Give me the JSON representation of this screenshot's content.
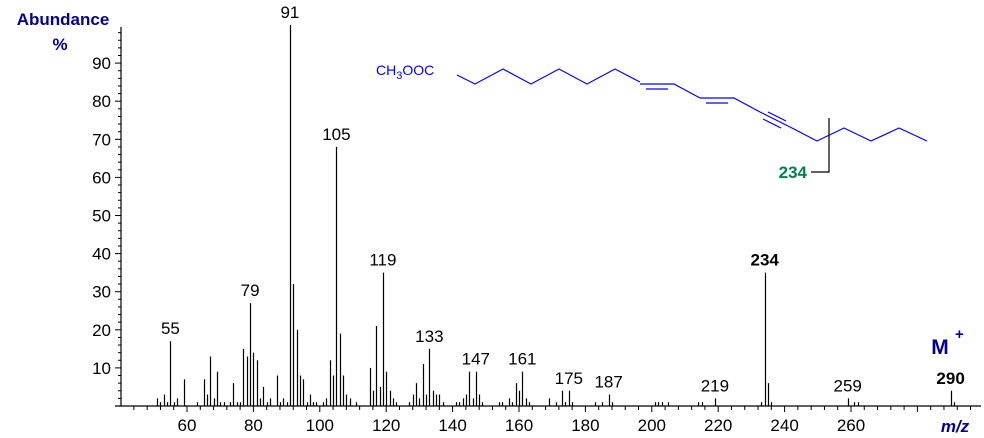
{
  "chart_data": {
    "type": "bar",
    "title": "",
    "xlabel": "m/z",
    "ylabel": "Abundance %",
    "xlim": [
      40,
      300
    ],
    "ylim": [
      0,
      100
    ],
    "grid": false,
    "x_ticks": [
      60,
      80,
      100,
      120,
      140,
      160,
      180,
      200,
      220,
      240,
      260
    ],
    "y_ticks": [
      10,
      20,
      30,
      40,
      50,
      60,
      70,
      80,
      90
    ],
    "peaks": [
      [
        51,
        2
      ],
      [
        52,
        1
      ],
      [
        53,
        3
      ],
      [
        54,
        1
      ],
      [
        55,
        17
      ],
      [
        56,
        1
      ],
      [
        57,
        2
      ],
      [
        59,
        7
      ],
      [
        63,
        1
      ],
      [
        65,
        7
      ],
      [
        66,
        3
      ],
      [
        67,
        13
      ],
      [
        68,
        2
      ],
      [
        69,
        9
      ],
      [
        70,
        1
      ],
      [
        71,
        1
      ],
      [
        73,
        1
      ],
      [
        74,
        6
      ],
      [
        75,
        1
      ],
      [
        76,
        1
      ],
      [
        77,
        15
      ],
      [
        78,
        13
      ],
      [
        79,
        27
      ],
      [
        80,
        14
      ],
      [
        81,
        12
      ],
      [
        82,
        2
      ],
      [
        83,
        5
      ],
      [
        84,
        1
      ],
      [
        85,
        2
      ],
      [
        87,
        8
      ],
      [
        88,
        1
      ],
      [
        89,
        2
      ],
      [
        90,
        1
      ],
      [
        91,
        100
      ],
      [
        92,
        32
      ],
      [
        93,
        20
      ],
      [
        94,
        8
      ],
      [
        95,
        7
      ],
      [
        96,
        1
      ],
      [
        97,
        3
      ],
      [
        98,
        1
      ],
      [
        99,
        1
      ],
      [
        101,
        1
      ],
      [
        102,
        2
      ],
      [
        103,
        12
      ],
      [
        104,
        8
      ],
      [
        105,
        68
      ],
      [
        106,
        19
      ],
      [
        107,
        8
      ],
      [
        108,
        3
      ],
      [
        109,
        2
      ],
      [
        111,
        1
      ],
      [
        115,
        10
      ],
      [
        116,
        4
      ],
      [
        117,
        21
      ],
      [
        118,
        5
      ],
      [
        119,
        35
      ],
      [
        120,
        9
      ],
      [
        121,
        4
      ],
      [
        122,
        2
      ],
      [
        123,
        1
      ],
      [
        127,
        1
      ],
      [
        128,
        3
      ],
      [
        129,
        6
      ],
      [
        130,
        2
      ],
      [
        131,
        11
      ],
      [
        132,
        3
      ],
      [
        133,
        15
      ],
      [
        134,
        4
      ],
      [
        135,
        3
      ],
      [
        136,
        3
      ],
      [
        137,
        1
      ],
      [
        141,
        1
      ],
      [
        142,
        1
      ],
      [
        143,
        2
      ],
      [
        144,
        3
      ],
      [
        145,
        9
      ],
      [
        146,
        2
      ],
      [
        147,
        9
      ],
      [
        148,
        3
      ],
      [
        149,
        1
      ],
      [
        154,
        1
      ],
      [
        155,
        1
      ],
      [
        157,
        2
      ],
      [
        158,
        1
      ],
      [
        159,
        6
      ],
      [
        160,
        4
      ],
      [
        161,
        9
      ],
      [
        162,
        2
      ],
      [
        163,
        1
      ],
      [
        169,
        2
      ],
      [
        171,
        1
      ],
      [
        173,
        4
      ],
      [
        174,
        1
      ],
      [
        175,
        4
      ],
      [
        176,
        1
      ],
      [
        183,
        1
      ],
      [
        185,
        1
      ],
      [
        187,
        3
      ],
      [
        188,
        1
      ],
      [
        201,
        1
      ],
      [
        202,
        1
      ],
      [
        203,
        1
      ],
      [
        205,
        1
      ],
      [
        214,
        1
      ],
      [
        215,
        1
      ],
      [
        219,
        2
      ],
      [
        233,
        1
      ],
      [
        234,
        35
      ],
      [
        235,
        6
      ],
      [
        236,
        1
      ],
      [
        259,
        2
      ],
      [
        261,
        1
      ],
      [
        262,
        1
      ],
      [
        290,
        4
      ],
      [
        291,
        1
      ]
    ],
    "annotations": [
      {
        "mz": 55,
        "label": "55",
        "color": "#000000"
      },
      {
        "mz": 79,
        "label": "79",
        "color": "#000000"
      },
      {
        "mz": 91,
        "label": "91",
        "color": "#000000"
      },
      {
        "mz": 105,
        "label": "105",
        "color": "#000000"
      },
      {
        "mz": 119,
        "label": "119",
        "color": "#000000"
      },
      {
        "mz": 133,
        "label": "133",
        "color": "#000000"
      },
      {
        "mz": 147,
        "label": "147",
        "color": "#000000"
      },
      {
        "mz": 161,
        "label": "161",
        "color": "#000000"
      },
      {
        "mz": 175,
        "label": "175",
        "color": "#000000"
      },
      {
        "mz": 187,
        "label": "187",
        "color": "#000000"
      },
      {
        "mz": 219,
        "label": "219",
        "color": "#000000"
      },
      {
        "mz": 234,
        "label": "234",
        "color": "#00804a",
        "bold": true
      },
      {
        "mz": 259,
        "label": "259",
        "color": "#000000"
      },
      {
        "mz": 290,
        "label": "290",
        "color": "#000099",
        "bold": true
      }
    ],
    "molecular_ion_label": "M",
    "molecular_ion_superscript": "+"
  },
  "axis": {
    "y_title_line1": "Abundance",
    "y_title_line2": "%",
    "x_title": "m/z"
  },
  "structure": {
    "formula_prefix": "CH",
    "formula_sub": "3",
    "formula_suffix": "OOC",
    "fragment_label": "234",
    "line_color": "#0000ff",
    "fragment_color": "#00804a"
  },
  "colors": {
    "axis_title": "#000099",
    "peak": "#000000",
    "highlight": "#00804a"
  }
}
